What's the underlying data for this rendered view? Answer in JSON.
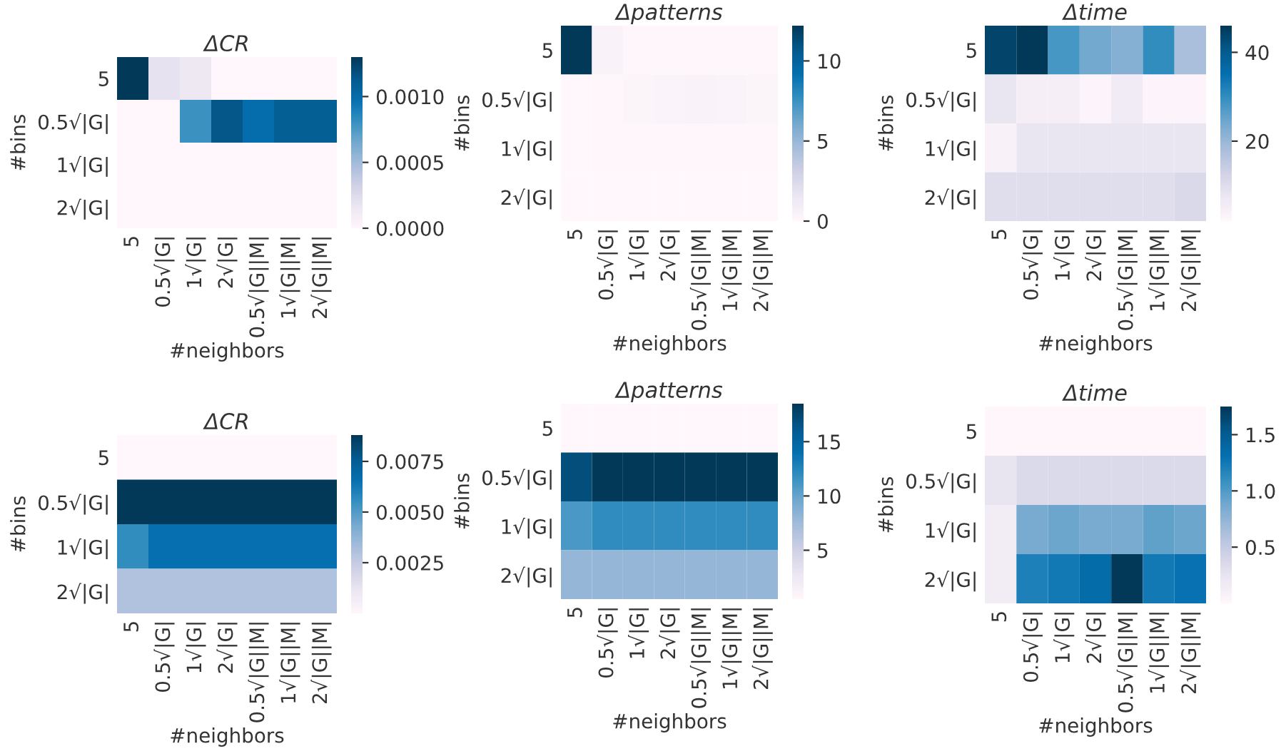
{
  "chart_data": [
    {
      "type": "heatmap",
      "title": "ΔCR",
      "xlabel": "#neighbors",
      "ylabel": "#bins",
      "categories": [
        "5",
        "0.5√|G|",
        "1√|G|",
        "2√|G|",
        "0.5√|G||M|",
        "1√|G||M|",
        "2√|G||M|"
      ],
      "y_categories": [
        "5",
        "0.5√|G|",
        "1√|G|",
        "2√|G|"
      ],
      "cells": [
        [
          0.0013,
          0.0002,
          0.00015,
          0,
          0,
          0,
          0
        ],
        [
          0,
          0,
          0.0008,
          0.00115,
          0.001,
          0.0011,
          0.0011
        ],
        [
          0,
          0,
          0,
          0,
          0,
          0,
          0
        ],
        [
          0,
          0,
          0,
          0,
          0,
          0,
          0
        ]
      ],
      "clim": [
        0,
        0.0013
      ],
      "cticks": [
        {
          "value": 0,
          "label": "0.0000"
        },
        {
          "value": 0.0005,
          "label": "0.0005"
        },
        {
          "value": 0.001,
          "label": "0.0010"
        }
      ]
    },
    {
      "type": "heatmap",
      "title": "Δpatterns",
      "xlabel": "#neighbors",
      "ylabel": "#bins",
      "categories": [
        "5",
        "0.5√|G|",
        "1√|G|",
        "2√|G|",
        "0.5√|G||M|",
        "1√|G||M|",
        "2√|G||M|"
      ],
      "y_categories": [
        "5",
        "0.5√|G|",
        "1√|G|",
        "2√|G|"
      ],
      "cells": [
        [
          12.2,
          0.5,
          0.1,
          0.1,
          0.1,
          0.1,
          0.1
        ],
        [
          0,
          0.1,
          0.3,
          0.4,
          0.5,
          0.4,
          0.3
        ],
        [
          0,
          0.1,
          0.1,
          0.1,
          0.1,
          0.1,
          0.1
        ],
        [
          0,
          0,
          0,
          0,
          0,
          0,
          0
        ]
      ],
      "clim": [
        0,
        12.2
      ],
      "cticks": [
        0,
        5,
        10
      ]
    },
    {
      "type": "heatmap",
      "title": "Δtime",
      "xlabel": "#neighbors",
      "ylabel": "#bins",
      "categories": [
        "5",
        "0.5√|G|",
        "1√|G|",
        "2√|G|",
        "0.5√|G||M|",
        "1√|G||M|",
        "2√|G||M|"
      ],
      "y_categories": [
        "5",
        "0.5√|G|",
        "1√|G|",
        "2√|G|"
      ],
      "cells": [
        [
          44,
          46,
          28,
          24,
          22,
          30,
          18
        ],
        [
          8,
          5,
          5,
          3,
          6,
          3,
          3
        ],
        [
          4,
          8,
          8,
          8,
          8,
          8,
          8
        ],
        [
          10,
          10,
          10,
          10,
          10,
          10,
          11
        ]
      ],
      "clim": [
        2,
        46
      ],
      "cticks": [
        20,
        40
      ]
    },
    {
      "type": "heatmap",
      "title": "ΔCR",
      "xlabel": "#neighbors",
      "ylabel": "#bins",
      "categories": [
        "5",
        "0.5√|G|",
        "1√|G|",
        "2√|G|",
        "0.5√|G||M|",
        "1√|G||M|",
        "2√|G||M|"
      ],
      "y_categories": [
        "5",
        "0.5√|G|",
        "1√|G|",
        "2√|G|"
      ],
      "cells": [
        [
          0,
          0,
          0,
          0,
          0,
          0,
          0
        ],
        [
          0.0088,
          0.0088,
          0.0088,
          0.0088,
          0.0088,
          0.0088,
          0.0088
        ],
        [
          0.0056,
          0.0066,
          0.0066,
          0.0066,
          0.0066,
          0.0066,
          0.0066
        ],
        [
          0.003,
          0.003,
          0.003,
          0.003,
          0.003,
          0.003,
          0.003
        ]
      ],
      "clim": [
        0,
        0.0088
      ],
      "cticks": [
        {
          "value": 0.0025,
          "label": "0.0025"
        },
        {
          "value": 0.005,
          "label": "0.0050"
        },
        {
          "value": 0.0075,
          "label": "0.0075"
        }
      ]
    },
    {
      "type": "heatmap",
      "title": "Δpatterns",
      "xlabel": "#neighbors",
      "ylabel": "#bins",
      "categories": [
        "5",
        "0.5√|G|",
        "1√|G|",
        "2√|G|",
        "0.5√|G||M|",
        "1√|G||M|",
        "2√|G||M|"
      ],
      "y_categories": [
        "5",
        "0.5√|G|",
        "1√|G|",
        "2√|G|"
      ],
      "cells": [
        [
          0.5,
          0.5,
          0.5,
          0.5,
          0.5,
          0.5,
          0.5
        ],
        [
          17,
          18.5,
          18.5,
          18.5,
          18.5,
          18.5,
          18.5
        ],
        [
          11,
          12,
          12,
          12,
          12,
          12,
          12
        ],
        [
          8,
          8,
          8,
          8,
          8,
          8,
          8
        ]
      ],
      "clim": [
        0.5,
        18.5
      ],
      "cticks": [
        5,
        10,
        15
      ]
    },
    {
      "type": "heatmap",
      "title": "Δtime",
      "xlabel": "#neighbors",
      "ylabel": "#bins",
      "categories": [
        "5",
        "0.5√|G|",
        "1√|G|",
        "2√|G|",
        "0.5√|G||M|",
        "1√|G||M|",
        "2√|G||M|"
      ],
      "y_categories": [
        "5",
        "0.5√|G|",
        "1√|G|",
        "2√|G|"
      ],
      "cells": [
        [
          0.02,
          0.02,
          0.02,
          0.02,
          0.02,
          0.02,
          0.02
        ],
        [
          0.25,
          0.35,
          0.35,
          0.35,
          0.35,
          0.35,
          0.35
        ],
        [
          0.15,
          0.85,
          0.9,
          0.85,
          0.85,
          0.95,
          0.9
        ],
        [
          0.15,
          1.2,
          1.25,
          1.35,
          1.75,
          1.25,
          1.3
        ]
      ],
      "clim": [
        0,
        1.75
      ],
      "cticks": [
        {
          "value": 0.5,
          "label": "0.5"
        },
        {
          "value": 1.0,
          "label": "1.0"
        },
        {
          "value": 1.5,
          "label": "1.5"
        }
      ]
    }
  ]
}
